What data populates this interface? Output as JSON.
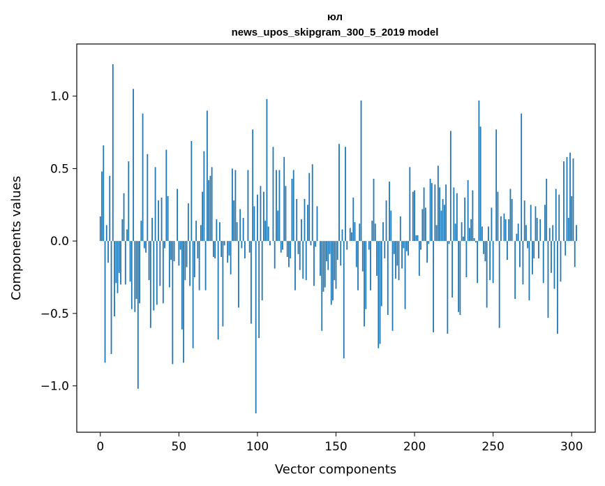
{
  "chart_data": {
    "type": "bar",
    "title": "юл",
    "subtitle": "news_upos_skipgram_300_5_2019 model",
    "xlabel": "Vector components",
    "ylabel": "Components values",
    "xlim": [
      -15,
      315
    ],
    "ylim": [
      -1.32,
      1.36
    ],
    "xticks": [
      0,
      50,
      100,
      150,
      200,
      250,
      300
    ],
    "yticks": [
      -1.0,
      -0.5,
      0.0,
      0.5,
      1.0
    ],
    "ytick_labels": [
      "−1.0",
      "−0.5",
      "0.0",
      "0.5",
      "1.0"
    ],
    "bar_color": "#1f77b4",
    "grid": false,
    "values": [
      0.17,
      0.48,
      0.66,
      -0.84,
      0.11,
      -0.15,
      0.45,
      -0.78,
      1.22,
      -0.52,
      -0.29,
      -0.36,
      -0.22,
      -0.3,
      0.15,
      0.33,
      -0.3,
      0.08,
      0.55,
      -0.28,
      -0.47,
      1.05,
      -0.49,
      -0.4,
      -1.02,
      -0.43,
      0.14,
      0.88,
      -0.05,
      -0.08,
      0.6,
      -0.27,
      -0.6,
      0.16,
      -0.48,
      0.51,
      -0.44,
      0.28,
      -0.31,
      0.3,
      -0.43,
      -0.05,
      0.63,
      0.31,
      -0.32,
      -0.13,
      -0.85,
      -0.14,
      0.0,
      0.36,
      -0.17,
      -0.06,
      -0.61,
      -0.84,
      -0.27,
      -0.18,
      0.26,
      -0.31,
      0.69,
      -0.74,
      -0.25,
      0.14,
      -0.12,
      -0.34,
      0.11,
      0.34,
      0.62,
      -0.34,
      0.9,
      0.42,
      0.45,
      0.51,
      -0.11,
      -0.12,
      0.15,
      -0.68,
      0.13,
      -0.11,
      -0.59,
      -0.03,
      0.0,
      -0.15,
      -0.1,
      -0.23,
      0.5,
      0.28,
      0.49,
      0.13,
      -0.46,
      0.22,
      -0.05,
      0.16,
      -0.12,
      0.0,
      0.49,
      -0.08,
      -0.57,
      0.77,
      0.24,
      -1.19,
      0.32,
      -0.67,
      0.38,
      -0.41,
      0.34,
      0.14,
      0.98,
      0.1,
      -0.03,
      0.0,
      0.65,
      -0.19,
      0.49,
      0.21,
      0.49,
      -0.08,
      -0.06,
      0.58,
      0.38,
      -0.11,
      -0.18,
      -0.12,
      0.43,
      0.49,
      -0.34,
      0.29,
      -0.09,
      -0.2,
      0.15,
      -0.26,
      0.29,
      -0.27,
      0.25,
      0.47,
      -0.03,
      0.53,
      -0.31,
      -0.04,
      0.24,
      0.0,
      -0.24,
      -0.62,
      -0.35,
      -0.32,
      -0.14,
      -0.2,
      -0.09,
      -0.44,
      -0.41,
      -0.27,
      -0.33,
      -0.13,
      0.67,
      -0.17,
      0.08,
      -0.81,
      0.65,
      -0.06,
      0.0,
      0.09,
      0.06,
      0.3,
      0.13,
      -0.18,
      -0.34,
      0.12,
      0.97,
      -0.21,
      -0.59,
      -0.47,
      0.0,
      -0.06,
      -0.34,
      0.14,
      0.43,
      0.12,
      -0.24,
      -0.74,
      -0.71,
      -0.45,
      0.13,
      -0.12,
      0.28,
      -0.51,
      0.41,
      0.21,
      -0.62,
      -0.09,
      -0.26,
      -0.17,
      -0.27,
      0.17,
      -0.19,
      -0.05,
      -0.47,
      -0.07,
      -0.1,
      0.51,
      0.0,
      0.34,
      0.35,
      0.04,
      0.04,
      -0.24,
      -0.06,
      0.22,
      0.37,
      0.23,
      -0.15,
      -0.02,
      0.43,
      0.4,
      -0.63,
      0.39,
      0.11,
      0.52,
      0.37,
      0.21,
      0.29,
      0.25,
      0.39,
      -0.64,
      -0.02,
      0.76,
      -0.39,
      0.37,
      0.12,
      0.33,
      -0.49,
      -0.51,
      0.13,
      0.03,
      0.3,
      -0.25,
      0.42,
      0.09,
      0.15,
      0.35,
      0.02,
      -0.01,
      -0.29,
      0.97,
      0.79,
      0.1,
      -0.09,
      -0.14,
      -0.46,
      0.1,
      -0.27,
      0.23,
      -0.29,
      0.0,
      0.77,
      0.34,
      -0.6,
      0.17,
      0.0,
      0.19,
      0.15,
      -0.13,
      0.15,
      0.36,
      0.29,
      0.0,
      -0.4,
      0.05,
      0.12,
      -0.18,
      0.88,
      -0.3,
      0.28,
      0.11,
      -0.05,
      -0.41,
      0.25,
      -0.23,
      -0.12,
      0.24,
      0.16,
      -0.12,
      0.15,
      0.0,
      -0.29,
      0.25,
      0.43,
      -0.53,
      0.09,
      -0.22,
      0.11,
      -0.33,
      0.36,
      -0.64,
      0.32,
      -0.28,
      0.0,
      0.55,
      -0.1,
      0.58,
      0.16,
      0.61,
      0.31,
      0.57,
      -0.18,
      0.11
    ]
  }
}
